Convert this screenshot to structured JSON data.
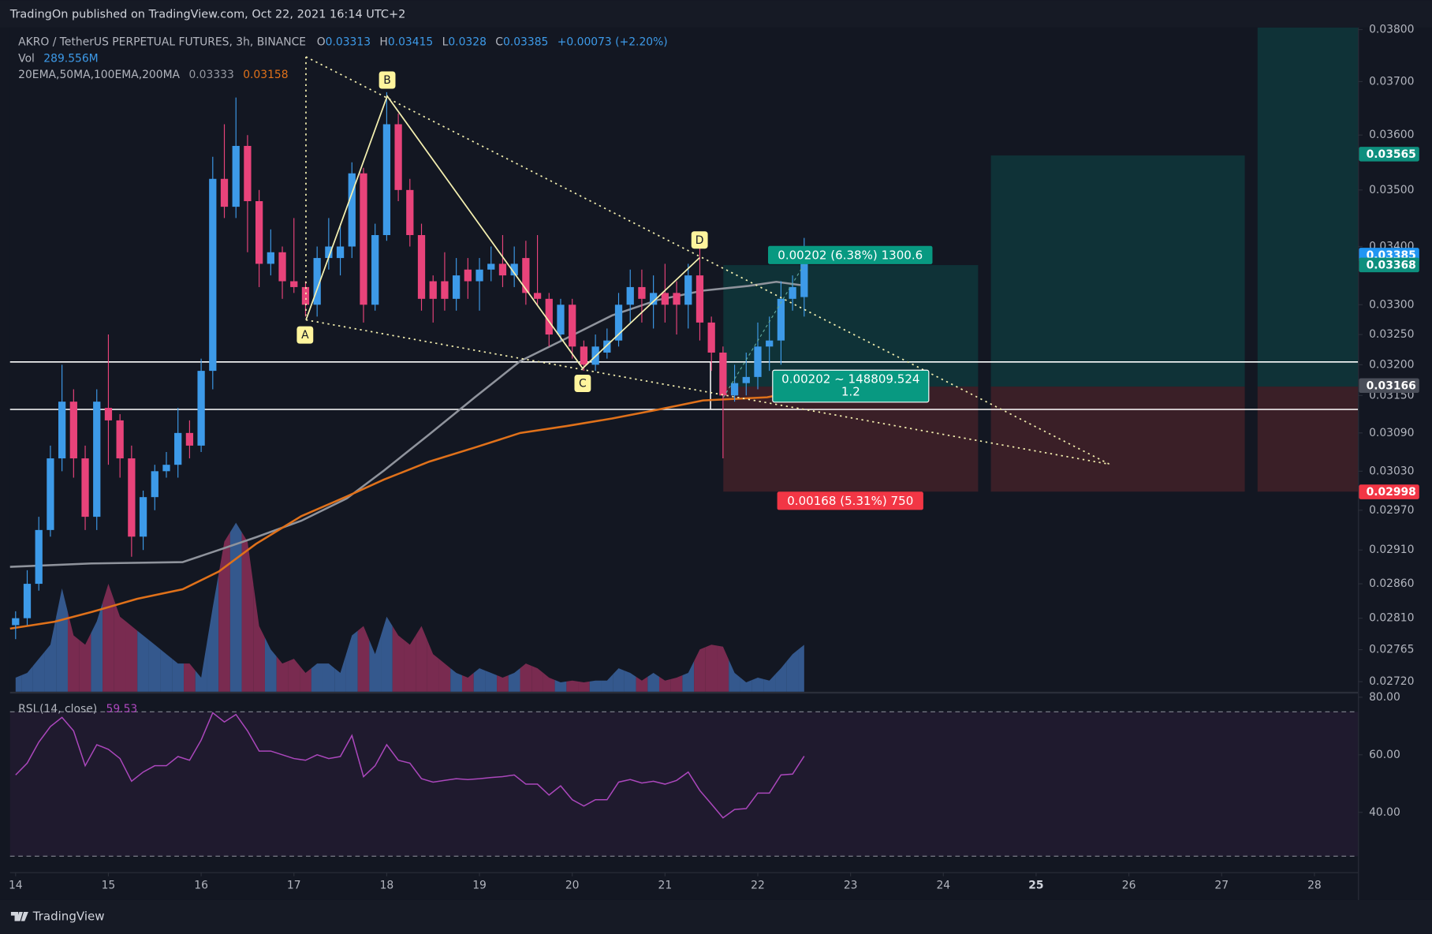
{
  "header": {
    "published": "TradingOn published on TradingView.com, Oct 22, 2021 16:14 UTC+2",
    "brand": "TradingView"
  },
  "chart_data": {
    "type": "candlestick",
    "title": "AKRO / TetherUS PERPETUAL FUTURES, 3h, BINANCE",
    "ohlc_letters": [
      "O",
      "H",
      "L",
      "C"
    ],
    "change": "+0.00073 (+2.20%)",
    "x": [
      14,
      14.125,
      14.25,
      14.375,
      14.5,
      14.625,
      14.75,
      14.875,
      15,
      15.125,
      15.25,
      15.375,
      15.5,
      15.625,
      15.75,
      15.875,
      16,
      16.125,
      16.25,
      16.375,
      16.5,
      16.625,
      16.75,
      16.875,
      17,
      17.125,
      17.25,
      17.375,
      17.5,
      17.625,
      17.75,
      17.875,
      18,
      18.125,
      18.25,
      18.375,
      18.5,
      18.625,
      18.75,
      18.875,
      19,
      19.125,
      19.25,
      19.375,
      19.5,
      19.625,
      19.75,
      19.875,
      20,
      20.125,
      20.25,
      20.375,
      20.5,
      20.625,
      20.75,
      20.875,
      21,
      21.125,
      21.25,
      21.375,
      21.5,
      21.625,
      21.75,
      21.875,
      22,
      22.125,
      22.25,
      22.375,
      22.5
    ],
    "open": [
      0.028,
      0.0281,
      0.0286,
      0.0294,
      0.0305,
      0.0314,
      0.0305,
      0.0296,
      0.0313,
      0.0311,
      0.0305,
      0.0293,
      0.0299,
      0.0303,
      0.0304,
      0.0309,
      0.0307,
      0.0319,
      0.0352,
      0.0347,
      0.0358,
      0.0348,
      0.0337,
      0.0339,
      0.0334,
      0.0333,
      0.033,
      0.0338,
      0.0338,
      0.034,
      0.0353,
      0.033,
      0.0342,
      0.0362,
      0.035,
      0.0342,
      0.0334,
      0.0334,
      0.0331,
      0.0336,
      0.0334,
      0.0336,
      0.0337,
      0.0335,
      0.0338,
      0.0332,
      0.0331,
      0.0325,
      0.033,
      0.0323,
      0.032,
      0.0322,
      0.0324,
      0.033,
      0.0333,
      0.033,
      0.0332,
      0.0332,
      0.033,
      0.0335,
      0.0327,
      0.0322,
      0.0315,
      0.0317,
      0.0318,
      0.0323,
      0.0324,
      0.0331,
      0.03313
    ],
    "high": [
      0.0282,
      0.0288,
      0.0296,
      0.0307,
      0.032,
      0.0316,
      0.0307,
      0.0316,
      0.0325,
      0.0312,
      0.0307,
      0.03,
      0.0304,
      0.0306,
      0.0313,
      0.0311,
      0.0321,
      0.0356,
      0.0362,
      0.0367,
      0.036,
      0.035,
      0.0343,
      0.034,
      0.0345,
      0.0334,
      0.034,
      0.0345,
      0.0344,
      0.0355,
      0.0354,
      0.0344,
      0.0368,
      0.0364,
      0.0352,
      0.0344,
      0.0335,
      0.0339,
      0.0338,
      0.0338,
      0.0338,
      0.034,
      0.0342,
      0.034,
      0.0341,
      0.0342,
      0.0332,
      0.0331,
      0.0331,
      0.0324,
      0.0325,
      0.0326,
      0.0332,
      0.0336,
      0.0336,
      0.0335,
      0.0337,
      0.0334,
      0.0337,
      0.034,
      0.0328,
      0.0323,
      0.032,
      0.0322,
      0.0327,
      0.0328,
      0.0334,
      0.0335,
      0.03415
    ],
    "low": [
      0.0278,
      0.028,
      0.0285,
      0.0293,
      0.0303,
      0.0302,
      0.0294,
      0.0294,
      0.0304,
      0.0302,
      0.029,
      0.0291,
      0.0297,
      0.0302,
      0.0302,
      0.0305,
      0.0306,
      0.0316,
      0.0345,
      0.0345,
      0.0339,
      0.0333,
      0.0335,
      0.0331,
      0.0332,
      0.0328,
      0.0328,
      0.0336,
      0.0335,
      0.0338,
      0.0327,
      0.0329,
      0.0341,
      0.0348,
      0.034,
      0.0329,
      0.0327,
      0.0329,
      0.0329,
      0.0331,
      0.0329,
      0.0334,
      0.0333,
      0.0333,
      0.033,
      0.033,
      0.0323,
      0.0324,
      0.0321,
      0.0319,
      0.0319,
      0.0321,
      0.0323,
      0.0327,
      0.0327,
      0.0326,
      0.0327,
      0.0325,
      0.0326,
      0.0324,
      0.0319,
      0.0305,
      0.0314,
      0.0315,
      0.0316,
      0.0319,
      0.032,
      0.0329,
      0.0328
    ],
    "close": [
      0.0281,
      0.0286,
      0.0294,
      0.0305,
      0.0314,
      0.0305,
      0.0296,
      0.0314,
      0.0311,
      0.0305,
      0.0293,
      0.0299,
      0.0303,
      0.0304,
      0.0309,
      0.0307,
      0.0319,
      0.0352,
      0.0347,
      0.0358,
      0.0348,
      0.0337,
      0.0339,
      0.0334,
      0.0333,
      0.033,
      0.0338,
      0.034,
      0.034,
      0.0353,
      0.033,
      0.0342,
      0.0362,
      0.035,
      0.0342,
      0.0331,
      0.0331,
      0.0331,
      0.0335,
      0.0334,
      0.0336,
      0.0337,
      0.0335,
      0.0337,
      0.0332,
      0.0331,
      0.0325,
      0.033,
      0.0323,
      0.032,
      0.0323,
      0.0324,
      0.033,
      0.0333,
      0.0331,
      0.0332,
      0.033,
      0.033,
      0.0335,
      0.0327,
      0.0322,
      0.0315,
      0.0317,
      0.0318,
      0.0323,
      0.0324,
      0.0331,
      0.0333,
      0.03385
    ],
    "up_color": "#3d9ae8",
    "down_color": "#e8437a",
    "xlim": [
      13.94,
      28.47
    ],
    "xticks": [
      14,
      15,
      16,
      17,
      18,
      19,
      20,
      21,
      22,
      23,
      24,
      25,
      26,
      27,
      28
    ],
    "ylim": [
      0.02706,
      0.03804
    ],
    "log_scale": true,
    "yticks": [
      {
        "value": 0.038,
        "label": "0.03800"
      },
      {
        "value": 0.037,
        "label": "0.03700"
      },
      {
        "value": 0.036,
        "label": "0.03600"
      },
      {
        "value": 0.035,
        "label": "0.03500"
      },
      {
        "value": 0.034,
        "label": "0.03400"
      },
      {
        "value": 0.033,
        "label": "0.03300"
      },
      {
        "value": 0.0325,
        "label": "0.03250"
      },
      {
        "value": 0.032,
        "label": "0.03200"
      },
      {
        "value": 0.0315,
        "label": "0.03150"
      },
      {
        "value": 0.0309,
        "label": "0.03090"
      },
      {
        "value": 0.0303,
        "label": "0.03030"
      },
      {
        "value": 0.0297,
        "label": "0.02970"
      },
      {
        "value": 0.0291,
        "label": "0.02910"
      },
      {
        "value": 0.0286,
        "label": "0.02860"
      },
      {
        "value": 0.0281,
        "label": "0.02810"
      },
      0.02765,
      {
        "value": 0.0272,
        "label": "0.02720"
      }
    ],
    "volume": {
      "name": "Vol",
      "up_color": "#3b64a0",
      "down_color": "#8c2f58",
      "last_label": "289.556M",
      "values": [
        87,
        116,
        203,
        290,
        637,
        347,
        290,
        434,
        666,
        463,
        405,
        347,
        290,
        232,
        174,
        174,
        87,
        521,
        926,
        1042,
        926,
        405,
        261,
        174,
        203,
        116,
        174,
        174,
        116,
        347,
        405,
        232,
        463,
        347,
        290,
        405,
        232,
        174,
        116,
        87,
        145,
        116,
        87,
        116,
        174,
        145,
        87,
        58,
        69,
        58,
        69,
        69,
        145,
        116,
        69,
        116,
        69,
        87,
        116,
        261,
        290,
        278,
        116,
        58,
        87,
        69,
        145,
        232,
        289.556
      ]
    },
    "indicators": {
      "label": "20EMA,50MA,100EMA,200MA",
      "lines": [
        {
          "color": "#8f939c",
          "x": [
            13.94,
            14.82,
            15.8,
            16.19,
            16.59,
            17.08,
            17.57,
            17.97,
            18.46,
            18.95,
            19.44,
            19.94,
            20.43,
            20.92,
            21.41,
            21.9,
            22.2,
            22.48
          ],
          "values": [
            0.02885,
            0.0289,
            0.02892,
            0.0291,
            0.02929,
            0.02954,
            0.02988,
            0.03031,
            0.03088,
            0.03147,
            0.03206,
            0.03244,
            0.03282,
            0.03308,
            0.03324,
            0.03332,
            0.03339,
            0.03333
          ]
        },
        {
          "color": "#e0711a",
          "x": [
            13.94,
            14.42,
            14.82,
            15.31,
            15.8,
            16.19,
            16.59,
            17.08,
            17.57,
            17.97,
            18.46,
            18.95,
            19.44,
            19.94,
            20.43,
            20.92,
            21.41,
            22.1,
            22.48
          ],
          "values": [
            0.02795,
            0.02805,
            0.02819,
            0.02838,
            0.02852,
            0.02878,
            0.02919,
            0.02961,
            0.02991,
            0.03017,
            0.03045,
            0.03067,
            0.0309,
            0.03101,
            0.03113,
            0.03127,
            0.03142,
            0.03147,
            0.03158
          ]
        }
      ]
    },
    "price_tags": [
      {
        "value": 0.03565,
        "color": "#0e8f7e"
      },
      {
        "value": 0.03385,
        "color": "#2196f3"
      },
      {
        "value": 0.03368,
        "color": "#0e8f7e"
      },
      {
        "value": 0.03166,
        "color": "#4a4e59"
      },
      {
        "value": 0.02998,
        "color": "#f23645"
      }
    ],
    "pattern_labels": [
      "A",
      "B",
      "C",
      "D"
    ],
    "position_labels": {
      "target": "0.00202 (6.38%) 1300.6",
      "ratio": "0.00202 ~ 148809.524",
      "rr": "1.2",
      "stop": "0.00168 (5.31%) 750"
    },
    "rsi": {
      "label": "RSI (14, close)",
      "color": "#ab47bc",
      "ylim": [
        19.05,
        80.95
      ],
      "yticks": [
        {
          "value": 80,
          "label": "80.00"
        },
        {
          "value": 60,
          "label": "60.00"
        },
        {
          "value": 40,
          "label": "40.00"
        }
      ],
      "values": [
        53.0,
        57.1,
        64.4,
        69.8,
        73.0,
        68.3,
        56.2,
        63.5,
        61.9,
        58.7,
        50.8,
        54.0,
        56.2,
        56.2,
        59.4,
        58.1,
        65.1,
        74.6,
        71.4,
        74.0,
        68.3,
        61.3,
        61.3,
        60.0,
        58.7,
        58.1,
        60.0,
        58.7,
        59.4,
        66.7,
        52.4,
        56.2,
        63.5,
        58.1,
        57.1,
        51.7,
        50.5,
        51.1,
        51.7,
        51.4,
        51.7,
        52.1,
        52.4,
        53.0,
        49.8,
        49.8,
        46.0,
        49.2,
        44.4,
        42.2,
        44.4,
        44.4,
        50.5,
        51.4,
        50.2,
        50.8,
        49.8,
        51.1,
        54.0,
        47.6,
        42.9,
        38.1,
        41.0,
        41.3,
        46.7,
        46.7,
        53.0,
        53.3,
        59.53
      ]
    }
  }
}
